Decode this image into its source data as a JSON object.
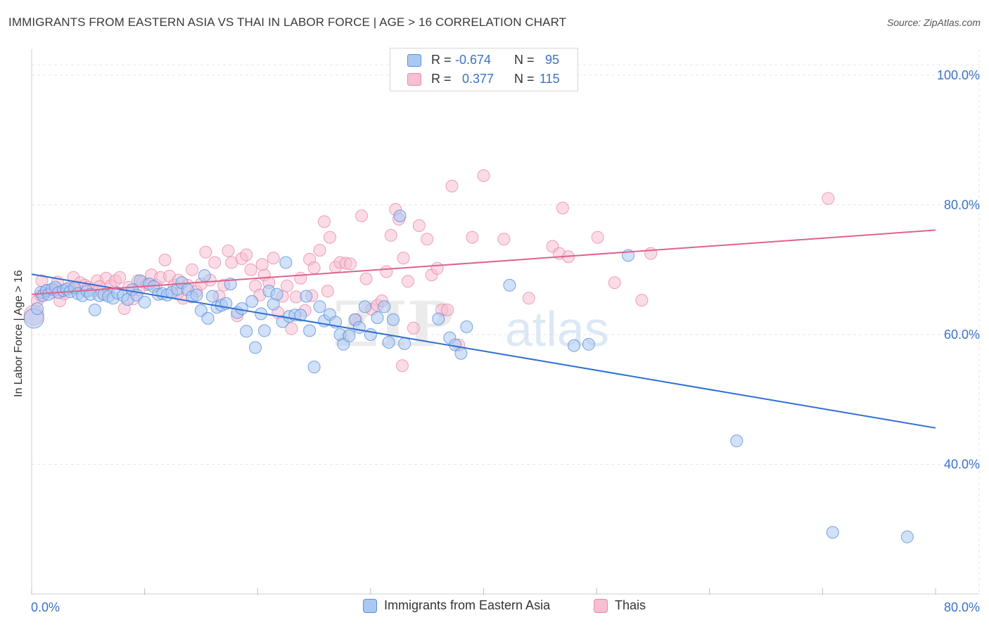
{
  "title": "IMMIGRANTS FROM EASTERN ASIA VS THAI IN LABOR FORCE | AGE > 16 CORRELATION CHART",
  "source": "Source: ZipAtlas.com",
  "watermark": {
    "zip": "ZIP",
    "atlas": "atlas"
  },
  "colors": {
    "blue_fill": "#a9c9f2",
    "blue_stroke": "#5b8fd9",
    "blue_line": "#2f6fd1",
    "pink_fill": "#f7bfd1",
    "pink_stroke": "#e98aaa",
    "pink_line": "#e0628e",
    "axis_text": "#3a72c8",
    "grid": "#e6e6e6"
  },
  "legend_top": {
    "rows": [
      {
        "r_label": "R =",
        "r_value": "-0.674",
        "n_label": "N =",
        "n_value": "95"
      },
      {
        "r_label": "R =",
        "r_value": "0.377",
        "n_label": "N =",
        "n_value": "115"
      }
    ]
  },
  "legend_bottom": [
    "Immigrants from Eastern Asia",
    "Thais"
  ],
  "chart_data": {
    "type": "scatter",
    "xlabel": "",
    "ylabel": "In Labor Force | Age > 16",
    "xlim": [
      0,
      80
    ],
    "ylim": [
      20,
      104
    ],
    "x_tick_labels": [
      "0.0%",
      "80.0%"
    ],
    "y_ticks": [
      100,
      80,
      60,
      40
    ],
    "y_tick_labels": [
      "100.0%",
      "80.0%",
      "60.0%",
      "40.0%"
    ],
    "grid": true,
    "legend_placement": "top-center",
    "series": [
      {
        "name": "Immigrants from Eastern Asia",
        "color": "#a9c9f2",
        "trend": {
          "x": [
            0,
            80
          ],
          "y": [
            69.3,
            45.6
          ]
        },
        "points": [
          [
            0.2,
            62.5
          ],
          [
            0.5,
            64.0
          ],
          [
            0.8,
            66.5
          ],
          [
            1.0,
            66.0
          ],
          [
            1.3,
            66.8
          ],
          [
            1.5,
            66.2
          ],
          [
            1.8,
            67.0
          ],
          [
            2.1,
            67.3
          ],
          [
            2.4,
            66.5
          ],
          [
            2.8,
            66.8
          ],
          [
            3.1,
            67.0
          ],
          [
            3.4,
            66.6
          ],
          [
            3.8,
            67.2
          ],
          [
            4.1,
            66.3
          ],
          [
            4.5,
            66.0
          ],
          [
            4.9,
            66.7
          ],
          [
            5.2,
            66.2
          ],
          [
            5.6,
            63.8
          ],
          [
            6.0,
            66.0
          ],
          [
            6.4,
            66.2
          ],
          [
            6.8,
            65.9
          ],
          [
            7.2,
            65.6
          ],
          [
            7.6,
            66.4
          ],
          [
            8.1,
            66.0
          ],
          [
            8.5,
            65.4
          ],
          [
            8.9,
            66.9
          ],
          [
            9.3,
            66.1
          ],
          [
            9.6,
            68.3
          ],
          [
            10.0,
            65.0
          ],
          [
            10.4,
            67.8
          ],
          [
            10.8,
            67.4
          ],
          [
            11.2,
            66.2
          ],
          [
            11.6,
            66.3
          ],
          [
            12.0,
            66.1
          ],
          [
            12.4,
            66.5
          ],
          [
            12.9,
            67.0
          ],
          [
            13.3,
            68.0
          ],
          [
            13.8,
            66.9
          ],
          [
            14.2,
            65.8
          ],
          [
            14.6,
            66.1
          ],
          [
            15.0,
            63.7
          ],
          [
            15.3,
            69.1
          ],
          [
            15.6,
            62.5
          ],
          [
            16.0,
            65.9
          ],
          [
            16.4,
            64.2
          ],
          [
            16.8,
            64.5
          ],
          [
            17.2,
            64.8
          ],
          [
            17.6,
            67.8
          ],
          [
            18.2,
            63.4
          ],
          [
            18.6,
            64.0
          ],
          [
            19.0,
            60.5
          ],
          [
            19.5,
            65.1
          ],
          [
            19.8,
            58.0
          ],
          [
            20.3,
            63.2
          ],
          [
            20.6,
            60.6
          ],
          [
            21.0,
            66.7
          ],
          [
            21.4,
            64.7
          ],
          [
            21.7,
            66.2
          ],
          [
            22.2,
            62.0
          ],
          [
            22.5,
            71.1
          ],
          [
            22.8,
            62.8
          ],
          [
            23.3,
            63.0
          ],
          [
            23.8,
            63.0
          ],
          [
            24.3,
            65.9
          ],
          [
            24.6,
            60.6
          ],
          [
            25.0,
            55.0
          ],
          [
            25.5,
            64.3
          ],
          [
            25.9,
            62.1
          ],
          [
            26.4,
            63.1
          ],
          [
            26.9,
            61.9
          ],
          [
            27.3,
            60.0
          ],
          [
            27.6,
            58.5
          ],
          [
            28.1,
            59.8
          ],
          [
            28.6,
            62.3
          ],
          [
            29.0,
            61.1
          ],
          [
            29.5,
            64.3
          ],
          [
            30.0,
            60.0
          ],
          [
            30.6,
            62.6
          ],
          [
            31.2,
            64.3
          ],
          [
            31.6,
            58.8
          ],
          [
            32.0,
            62.3
          ],
          [
            32.6,
            78.3
          ],
          [
            33.0,
            58.6
          ],
          [
            36.0,
            62.4
          ],
          [
            37.0,
            59.5
          ],
          [
            37.5,
            58.4
          ],
          [
            38.0,
            57.1
          ],
          [
            38.5,
            61.2
          ],
          [
            42.3,
            67.6
          ],
          [
            48.0,
            58.3
          ],
          [
            49.3,
            58.5
          ],
          [
            52.8,
            72.2
          ],
          [
            62.4,
            43.6
          ],
          [
            70.9,
            29.5
          ],
          [
            77.5,
            28.8
          ]
        ]
      },
      {
        "name": "Thais",
        "color": "#f7bfd1",
        "trend": {
          "x": [
            0,
            80
          ],
          "y": [
            66.2,
            76.1
          ]
        },
        "points": [
          [
            0.2,
            63.0
          ],
          [
            0.5,
            65.2
          ],
          [
            0.8,
            66.0
          ],
          [
            1.1,
            66.4
          ],
          [
            1.4,
            66.8
          ],
          [
            1.8,
            66.5
          ],
          [
            2.1,
            67.0
          ],
          [
            2.5,
            65.2
          ],
          [
            2.9,
            66.3
          ],
          [
            3.3,
            67.2
          ],
          [
            3.7,
            68.8
          ],
          [
            4.0,
            67.1
          ],
          [
            4.3,
            68.0
          ],
          [
            4.7,
            67.6
          ],
          [
            5.0,
            67.3
          ],
          [
            5.4,
            66.8
          ],
          [
            5.8,
            68.3
          ],
          [
            6.2,
            66.5
          ],
          [
            6.6,
            68.7
          ],
          [
            7.0,
            67.5
          ],
          [
            7.4,
            68.3
          ],
          [
            7.8,
            68.8
          ],
          [
            8.2,
            64.0
          ],
          [
            8.6,
            67.3
          ],
          [
            9.0,
            65.5
          ],
          [
            9.4,
            68.3
          ],
          [
            9.8,
            68.1
          ],
          [
            10.2,
            67.7
          ],
          [
            10.6,
            69.2
          ],
          [
            11.0,
            67.6
          ],
          [
            11.4,
            68.8
          ],
          [
            11.8,
            71.5
          ],
          [
            12.2,
            69.0
          ],
          [
            12.6,
            67.6
          ],
          [
            13.0,
            68.4
          ],
          [
            13.4,
            65.6
          ],
          [
            13.8,
            67.6
          ],
          [
            14.2,
            70.0
          ],
          [
            14.6,
            66.7
          ],
          [
            15.0,
            67.8
          ],
          [
            15.4,
            72.7
          ],
          [
            15.8,
            68.4
          ],
          [
            16.2,
            71.1
          ],
          [
            16.6,
            65.9
          ],
          [
            17.0,
            67.6
          ],
          [
            17.4,
            72.9
          ],
          [
            17.7,
            71.1
          ],
          [
            18.2,
            62.9
          ],
          [
            18.6,
            71.7
          ],
          [
            19.0,
            72.3
          ],
          [
            19.4,
            70.0
          ],
          [
            19.8,
            67.5
          ],
          [
            20.2,
            66.1
          ],
          [
            20.6,
            69.2
          ],
          [
            21.0,
            68.0
          ],
          [
            21.4,
            71.8
          ],
          [
            21.8,
            63.4
          ],
          [
            22.2,
            65.9
          ],
          [
            22.6,
            67.5
          ],
          [
            23.0,
            60.9
          ],
          [
            23.4,
            65.8
          ],
          [
            23.8,
            68.7
          ],
          [
            24.2,
            63.7
          ],
          [
            24.6,
            71.6
          ],
          [
            25.0,
            70.3
          ],
          [
            25.5,
            73.0
          ],
          [
            25.9,
            77.4
          ],
          [
            26.4,
            75.0
          ],
          [
            26.9,
            70.4
          ],
          [
            27.3,
            71.1
          ],
          [
            27.8,
            71.0
          ],
          [
            28.2,
            70.9
          ],
          [
            28.7,
            62.3
          ],
          [
            29.2,
            78.3
          ],
          [
            29.6,
            68.6
          ],
          [
            30.1,
            63.9
          ],
          [
            30.6,
            64.5
          ],
          [
            31.0,
            65.2
          ],
          [
            31.4,
            69.7
          ],
          [
            31.8,
            75.3
          ],
          [
            32.2,
            79.3
          ],
          [
            32.5,
            77.8
          ],
          [
            32.9,
            71.8
          ],
          [
            33.3,
            68.2
          ],
          [
            33.8,
            61.0
          ],
          [
            34.3,
            76.8
          ],
          [
            35.0,
            74.7
          ],
          [
            35.4,
            69.2
          ],
          [
            35.9,
            70.2
          ],
          [
            36.3,
            63.8
          ],
          [
            36.8,
            63.8
          ],
          [
            37.2,
            82.9
          ],
          [
            37.8,
            58.4
          ],
          [
            39.0,
            75.0
          ],
          [
            40.0,
            84.5
          ],
          [
            41.8,
            74.7
          ],
          [
            44.0,
            65.6
          ],
          [
            46.1,
            73.6
          ],
          [
            46.7,
            72.5
          ],
          [
            47.0,
            79.5
          ],
          [
            47.5,
            72.0
          ],
          [
            50.1,
            75.0
          ],
          [
            51.6,
            68.0
          ],
          [
            54.0,
            65.3
          ],
          [
            54.8,
            72.5
          ],
          [
            70.5,
            81.0
          ],
          [
            0.9,
            68.3
          ],
          [
            2.3,
            68.1
          ],
          [
            6.0,
            67.4
          ],
          [
            9.5,
            66.9
          ],
          [
            12.9,
            66.3
          ],
          [
            20.4,
            70.8
          ],
          [
            24.8,
            66.0
          ],
          [
            26.2,
            66.7
          ],
          [
            32.8,
            55.2
          ]
        ]
      }
    ]
  }
}
